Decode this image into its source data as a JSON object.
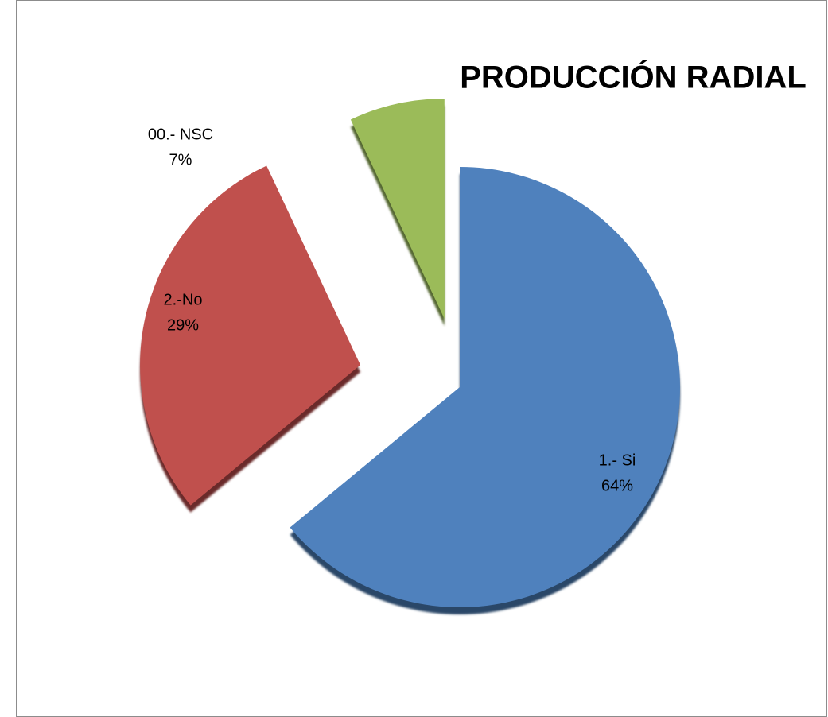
{
  "chart_data": {
    "type": "pie",
    "title": "PRODUCCIÓN RADIAL",
    "categories": [
      "1.- Si",
      "2.-No",
      "00.- NSC"
    ],
    "values": [
      64,
      29,
      7
    ],
    "value_labels": [
      "64%",
      "29%",
      "7%"
    ],
    "colors": [
      "#4f81bd",
      "#c0504d",
      "#9bbb59"
    ]
  }
}
